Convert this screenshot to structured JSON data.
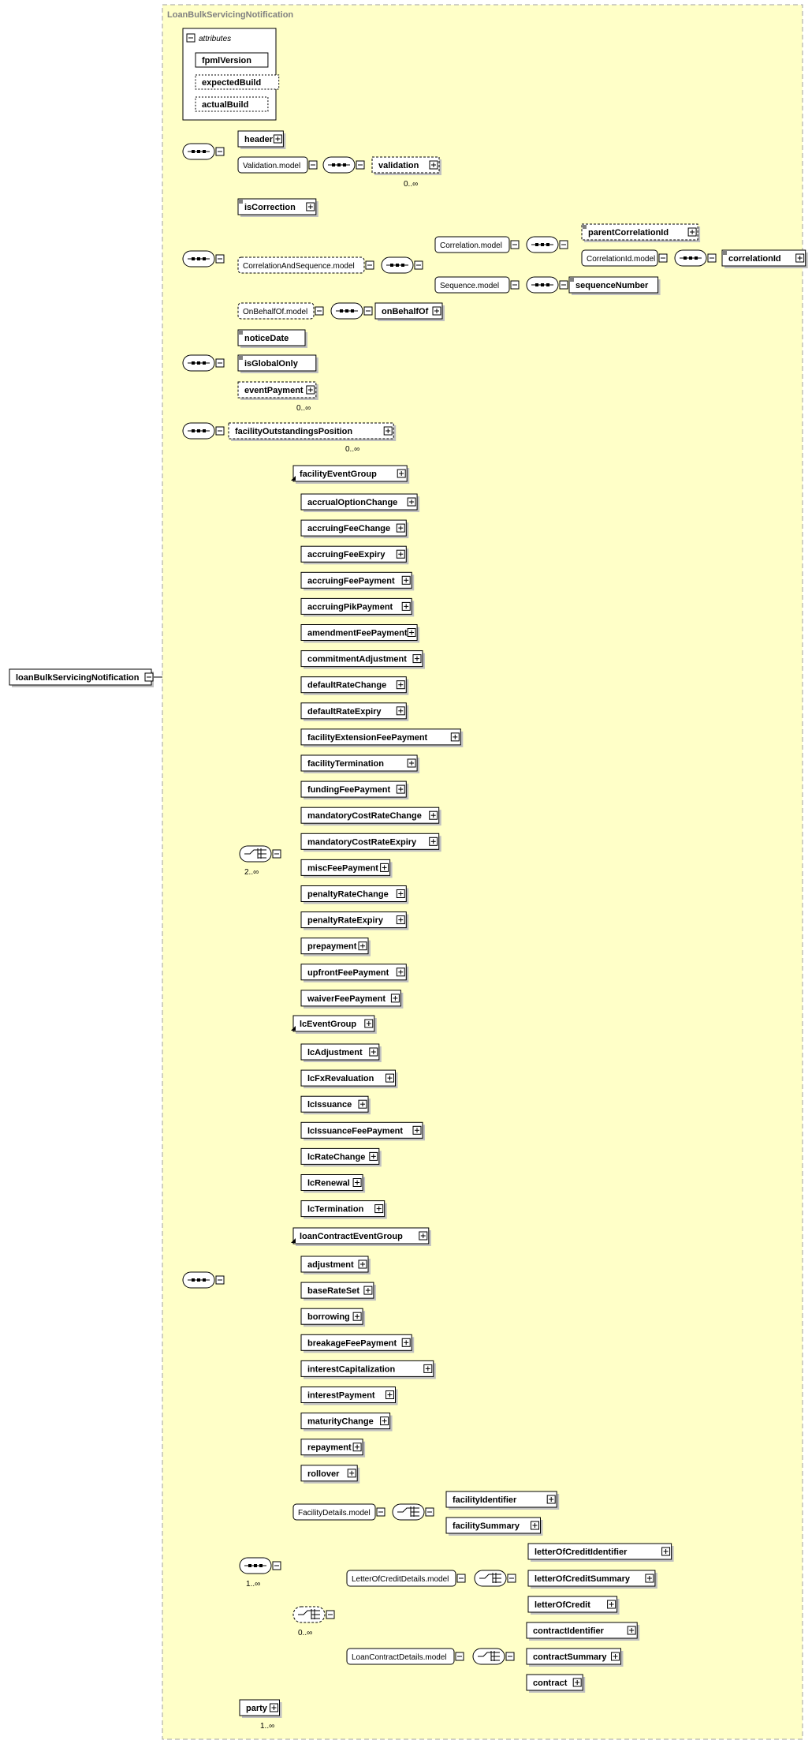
{
  "diagram": {
    "root": "loanBulkServicingNotification",
    "complex_type": "LoanBulkServicingNotification",
    "attributes_label": "attributes",
    "attributes": [
      {
        "name": "fpmlVersion",
        "required": true
      },
      {
        "name": "expectedBuild",
        "required": false
      },
      {
        "name": "actualBuild",
        "required": false
      }
    ],
    "occurrence_labels": {
      "validation": "0..∞",
      "eventPayment": "0..∞",
      "facilityOutstandingsPosition": "0..∞",
      "choice_main": "2..∞",
      "sequence_details": "1..∞",
      "choice_details": "0..∞",
      "party": "1..∞"
    },
    "seq1": {
      "header": "header",
      "validation_model": "Validation.model",
      "validation": "validation"
    },
    "seq2": {
      "isCorrection": "isCorrection",
      "correlation_and_sequence_model": "CorrelationAndSequence.model",
      "correlation_model": "Correlation.model",
      "parentCorrelationId": "parentCorrelationId",
      "correlationId_model": "CorrelationId.model",
      "correlationId": "correlationId",
      "sequence_model": "Sequence.model",
      "sequenceNumber": "sequenceNumber",
      "onBehalfOf_model": "OnBehalfOf.model",
      "onBehalfOf": "onBehalfOf"
    },
    "seq3": {
      "noticeDate": "noticeDate",
      "isGlobalOnly": "isGlobalOnly",
      "eventPayment": "eventPayment"
    },
    "seq4": {
      "facilityOutstandingsPosition": "facilityOutstandingsPosition"
    },
    "facility_event_group": {
      "name": "facilityEventGroup",
      "members": [
        "accrualOptionChange",
        "accruingFeeChange",
        "accruingFeeExpiry",
        "accruingFeePayment",
        "accruingPikPayment",
        "amendmentFeePayment",
        "commitmentAdjustment",
        "defaultRateChange",
        "defaultRateExpiry",
        "facilityExtensionFeePayment",
        "facilityTermination",
        "fundingFeePayment",
        "mandatoryCostRateChange",
        "mandatoryCostRateExpiry",
        "miscFeePayment",
        "penaltyRateChange",
        "penaltyRateExpiry",
        "prepayment",
        "upfrontFeePayment",
        "waiverFeePayment"
      ]
    },
    "lc_event_group": {
      "name": "lcEventGroup",
      "members": [
        "lcAdjustment",
        "lcFxRevaluation",
        "lcIssuance",
        "lcIssuanceFeePayment",
        "lcRateChange",
        "lcRenewal",
        "lcTermination"
      ]
    },
    "loan_contract_event_group": {
      "name": "loanContractEventGroup",
      "members": [
        "adjustment",
        "baseRateSet",
        "borrowing",
        "breakageFeePayment",
        "interestCapitalization",
        "interestPayment",
        "maturityChange",
        "repayment",
        "rollover"
      ]
    },
    "facility_details": {
      "model": "FacilityDetails.model",
      "members": [
        "facilityIdentifier",
        "facilitySummary"
      ]
    },
    "letter_of_credit_details": {
      "model": "LetterOfCreditDetails.model",
      "members": [
        "letterOfCreditIdentifier",
        "letterOfCreditSummary",
        "letterOfCredit"
      ]
    },
    "loan_contract_details": {
      "model": "LoanContractDetails.model",
      "members": [
        "contractIdentifier",
        "contractSummary",
        "contract"
      ]
    },
    "party": "party"
  }
}
